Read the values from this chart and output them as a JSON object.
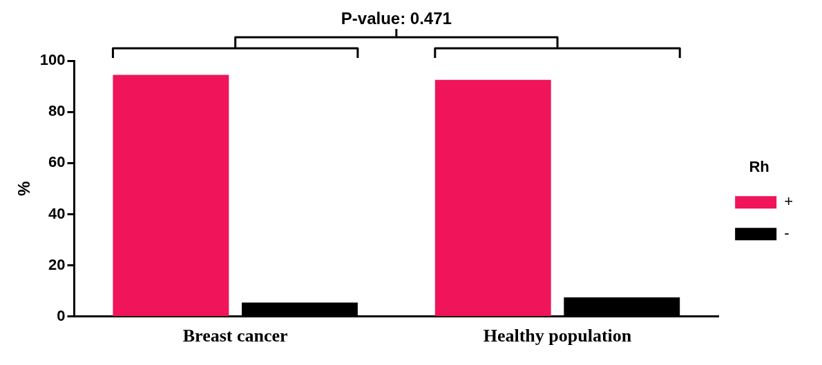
{
  "chart_data": {
    "type": "bar",
    "categories": [
      "Breast cancer",
      "Healthy population"
    ],
    "series": [
      {
        "name": "+",
        "color": "#f0145a",
        "values": [
          94.5,
          92.5
        ]
      },
      {
        "name": "-",
        "color": "#000000",
        "values": [
          5.5,
          7.5
        ]
      }
    ],
    "ylabel": "%",
    "ylim": [
      0,
      100
    ],
    "yticks": [
      0,
      20,
      40,
      60,
      80,
      100
    ],
    "grid": false,
    "legend": "right",
    "legend_title": "Rh",
    "annotations": [
      "P-value: 0.471"
    ]
  }
}
